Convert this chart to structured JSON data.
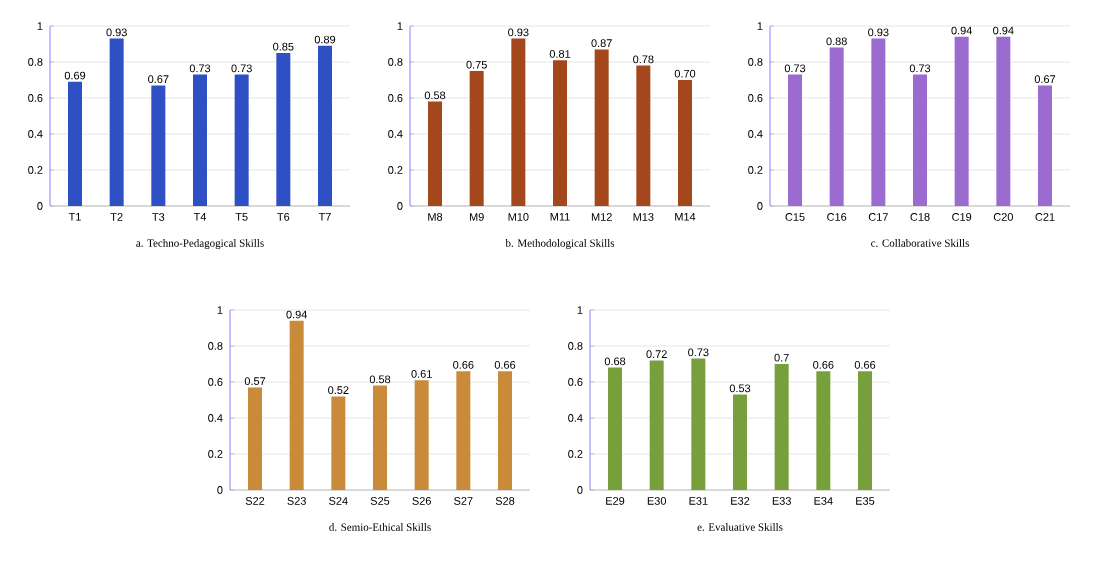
{
  "chart_data": [
    {
      "type": "bar",
      "title": "a. Techno-Pedagogical Skills",
      "categories": [
        "T1",
        "T2",
        "T3",
        "T4",
        "T5",
        "T6",
        "T7"
      ],
      "values": [
        0.69,
        0.93,
        0.67,
        0.73,
        0.73,
        0.85,
        0.89
      ],
      "value_labels": [
        "0.69",
        "0.93",
        "0.67",
        "0.73",
        "0.73",
        "0.85",
        "0.89"
      ],
      "color": "#2f4fc4",
      "ylim": [
        0,
        1
      ],
      "yticks": [
        0,
        {
          "value": 0.2,
          "label": "0.2"
        },
        {
          "value": 0.4,
          "label": "0.4"
        },
        {
          "value": 0.6,
          "label": "0.6"
        },
        {
          "value": 0.8,
          "label": "0.8"
        },
        1
      ],
      "grid": "y"
    },
    {
      "type": "bar",
      "title": "b. Methodological Skills",
      "categories": [
        "M8",
        "M9",
        "M10",
        "M11",
        "M12",
        "M13",
        "M14"
      ],
      "values": [
        0.58,
        0.75,
        0.93,
        0.81,
        0.87,
        0.78,
        0.7
      ],
      "value_labels": [
        "0.58",
        "0.75",
        "0.93",
        "0.81",
        "0.87",
        "0.78",
        "0.70"
      ],
      "color": "#a5471c",
      "ylim": [
        0,
        1
      ],
      "yticks": [
        0,
        {
          "value": 0.2,
          "label": "0.2"
        },
        {
          "value": 0.4,
          "label": "0.4"
        },
        {
          "value": 0.6,
          "label": "0.6"
        },
        {
          "value": 0.8,
          "label": "0.8"
        },
        1
      ],
      "grid": "y"
    },
    {
      "type": "bar",
      "title": "c. Collaborative Skills",
      "categories": [
        "C15",
        "C16",
        "C17",
        "C18",
        "C19",
        "C20",
        "C21"
      ],
      "values": [
        0.73,
        0.88,
        0.93,
        0.73,
        0.94,
        0.94,
        0.67
      ],
      "value_labels": [
        "0.73",
        "0.88",
        "0.93",
        "0.73",
        "0.94",
        "0.94",
        "0.67"
      ],
      "color": "#9b6bd0",
      "ylim": [
        0,
        1
      ],
      "yticks": [
        0,
        {
          "value": 0.2,
          "label": "0.2"
        },
        {
          "value": 0.4,
          "label": "0.4"
        },
        {
          "value": 0.6,
          "label": "0.6"
        },
        {
          "value": 0.8,
          "label": "0.8"
        },
        1
      ],
      "grid": "y"
    },
    {
      "type": "bar",
      "title": "d. Semio-Ethical Skills",
      "categories": [
        "S22",
        "S23",
        "S24",
        "S25",
        "S26",
        "S27",
        "S28"
      ],
      "values": [
        0.57,
        0.94,
        0.52,
        0.58,
        0.61,
        0.66,
        0.66
      ],
      "value_labels": [
        "0.57",
        "0.94",
        "0.52",
        "0.58",
        "0.61",
        "0.66",
        "0.66"
      ],
      "color": "#c98a3a",
      "ylim": [
        0,
        1
      ],
      "yticks": [
        0,
        {
          "value": 0.2,
          "label": "0.2"
        },
        {
          "value": 0.4,
          "label": "0.4"
        },
        {
          "value": 0.6,
          "label": "0.6"
        },
        {
          "value": 0.8,
          "label": "0.8"
        },
        1
      ],
      "grid": "y"
    },
    {
      "type": "bar",
      "title": "e. Evaluative Skills",
      "categories": [
        "E29",
        "E30",
        "E31",
        "E32",
        "E33",
        "E34",
        "E35"
      ],
      "values": [
        0.68,
        0.72,
        0.73,
        0.53,
        0.7,
        0.66,
        0.66
      ],
      "value_labels": [
        "0.68",
        "0.72",
        "0.73",
        "0.53",
        "0.7",
        "0.66",
        "0.66"
      ],
      "color": "#77a03c",
      "ylim": [
        0,
        1
      ],
      "yticks": [
        0,
        {
          "value": 0.2,
          "label": "0.2"
        },
        {
          "value": 0.4,
          "label": "0.4"
        },
        {
          "value": 0.6,
          "label": "0.6"
        },
        {
          "value": 0.8,
          "label": "0.8"
        },
        1
      ],
      "grid": "y"
    }
  ]
}
